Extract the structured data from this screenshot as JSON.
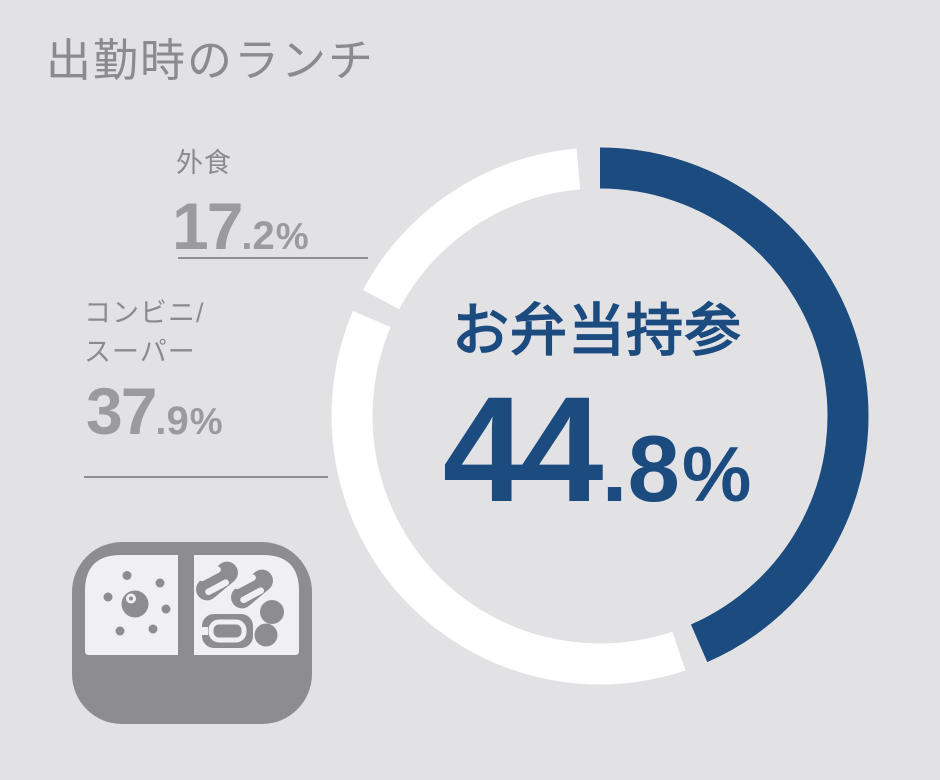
{
  "title": "出勤時のランチ",
  "colors": {
    "background": "#e2e2e4",
    "accent_blue": "#1c4b80",
    "segment_white": "#ffffff",
    "gray_text": "#8b8b8f",
    "gray_number": "#9b9b9f",
    "underline_gray": "#8f8f93",
    "icon_gray": "#8d8d90",
    "icon_light": "#f0f0f2"
  },
  "legend": [
    {
      "id": "gaishoku",
      "label_lines": [
        "外食"
      ],
      "value_int": "17",
      "value_dec": ".2",
      "percent_sign": "%"
    },
    {
      "id": "konbini-super",
      "label_lines": [
        "コンビニ/",
        "スーパー"
      ],
      "value_int": "37",
      "value_dec": ".9",
      "percent_sign": "%"
    }
  ],
  "center": {
    "heading": "お弁当持参",
    "value_int": "44",
    "value_dec": ".8",
    "percent_sign": "%"
  },
  "icon": {
    "name": "bento-box-icon"
  },
  "chart_data": {
    "type": "pie",
    "subtype": "donut",
    "title": "出勤時のランチ",
    "units": "%",
    "start_angle_deg": 0,
    "clockwise": true,
    "gap_deg": 5,
    "legend_position": "left",
    "segments": [
      {
        "label": "お弁当持参",
        "value": 44.8,
        "color": "#1c4b80"
      },
      {
        "label": "コンビニ/スーパー",
        "value": 37.9,
        "color": "#ffffff"
      },
      {
        "label": "外食",
        "value": 17.2,
        "color": "#ffffff"
      }
    ],
    "center_label": "お弁当持参",
    "center_value_percent": 44.8
  }
}
